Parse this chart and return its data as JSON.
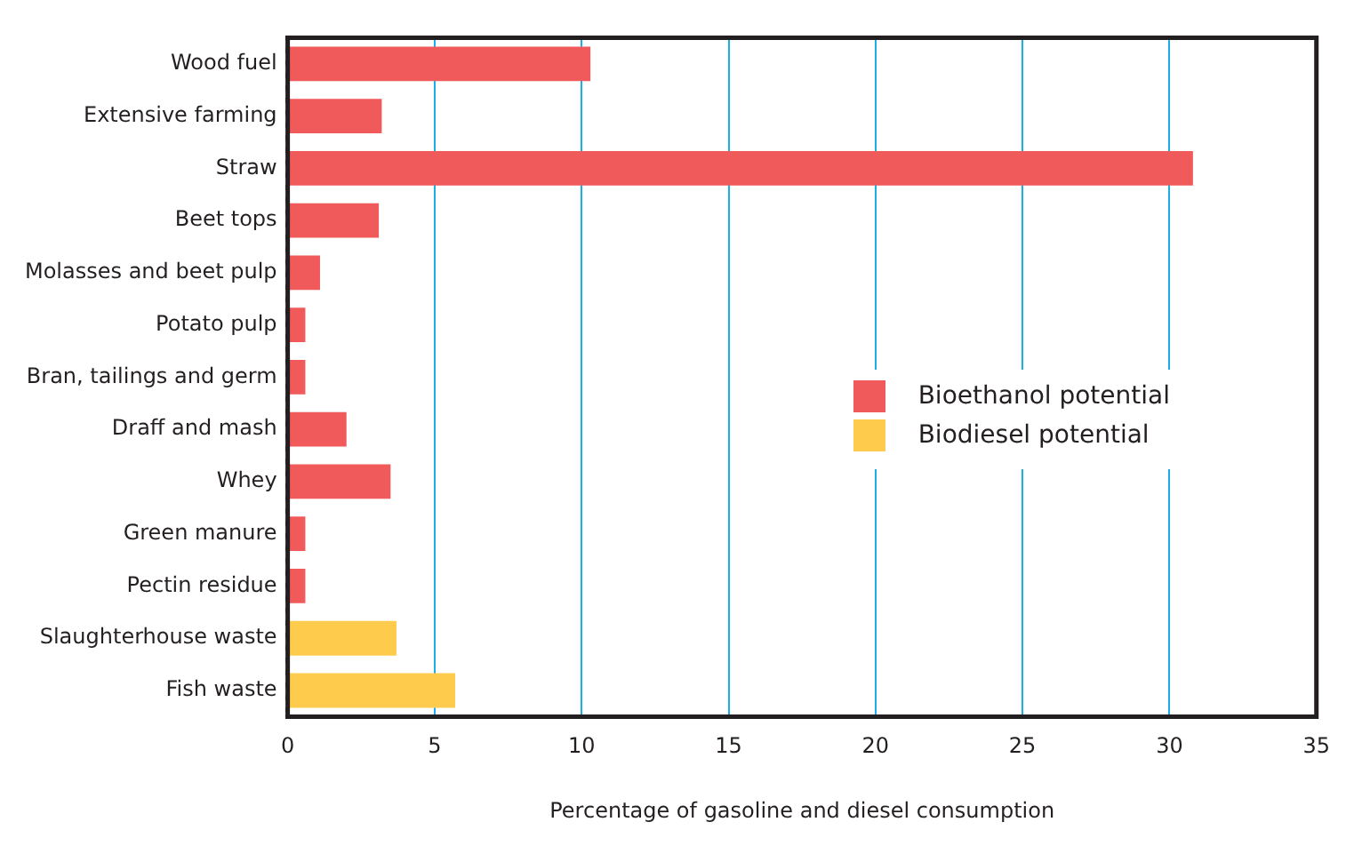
{
  "chart_data": {
    "type": "bar",
    "orientation": "horizontal",
    "xlabel": "Percentage of gasoline and diesel consumption",
    "categories": [
      "Wood fuel",
      "Extensive farming",
      "Straw",
      "Beet tops",
      "Molasses and beet pulp",
      "Potato pulp",
      "Bran, tailings and germ",
      "Draff and mash",
      "Whey",
      "Green manure",
      "Pectin residue",
      "Slaughterhouse waste",
      "Fish waste"
    ],
    "series": [
      {
        "name": "Bioethanol potential",
        "color": "#f05a5b",
        "values": [
          10.3,
          3.2,
          30.8,
          3.1,
          1.1,
          0.6,
          0.6,
          2.0,
          3.5,
          0.6,
          0.6,
          null,
          null
        ]
      },
      {
        "name": "Biodiesel potential",
        "color": "#fecb4d",
        "values": [
          null,
          null,
          null,
          null,
          null,
          null,
          null,
          null,
          null,
          null,
          null,
          3.7,
          5.7
        ]
      }
    ],
    "xlim": [
      0,
      35
    ],
    "xticks": [
      0,
      5,
      10,
      15,
      20,
      25,
      30,
      35
    ],
    "grid": "x",
    "legend": "right"
  }
}
